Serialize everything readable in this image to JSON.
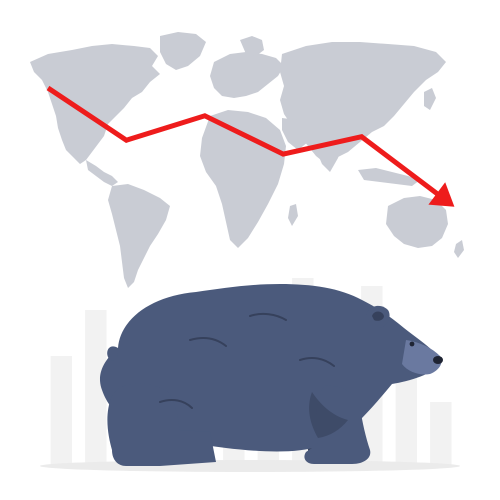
{
  "illustration": {
    "subject": "bear-market",
    "icons": {
      "world_map": "world-map-icon",
      "trend_arrow": "downtrend-arrow-icon",
      "bars": "bar-chart-icon",
      "bear": "bear-icon"
    },
    "colors": {
      "background": "#ffffff",
      "map": "#c9ccd4",
      "bars": "#f2f2f2",
      "arrow": "#ee1c1c",
      "bear_body": "#4b5a7c",
      "bear_dark": "#36415c",
      "bear_light": "#6a79a0",
      "ground": "#ebebeb"
    },
    "background_bars": {
      "count": 12,
      "relative_heights": [
        0.55,
        0.78,
        0.42,
        0.66,
        0.38,
        0.88,
        0.5,
        0.94,
        0.74,
        0.9,
        0.47,
        0.32
      ]
    },
    "trend_line": {
      "direction": "down",
      "points": [
        {
          "x": 0,
          "y": 100
        },
        {
          "x": 1,
          "y": 70
        },
        {
          "x": 2,
          "y": 84
        },
        {
          "x": 3,
          "y": 62
        },
        {
          "x": 4,
          "y": 72
        },
        {
          "x": 5,
          "y": 38
        }
      ]
    }
  }
}
